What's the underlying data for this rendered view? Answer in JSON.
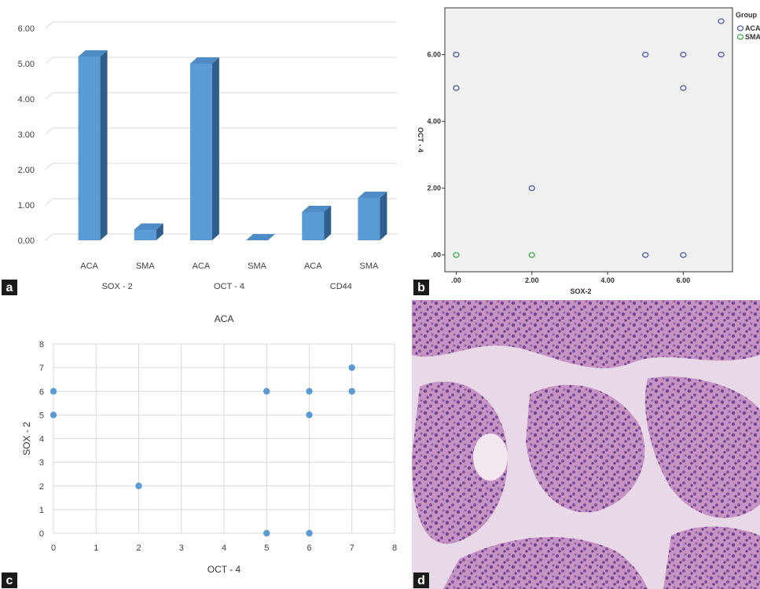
{
  "panel_labels": {
    "a": "a",
    "b": "b",
    "c": "c",
    "d": "d"
  },
  "colors": {
    "bar": "#5b9bd5",
    "bar_dark": "#2f5f8e",
    "acm": "#4a5aa8",
    "sma": "#3aa84a",
    "point": "#5b9bd5",
    "label_bg": "#1a1a1a"
  },
  "chart_data": [
    {
      "panel": "a",
      "type": "bar",
      "groups": [
        "SOX - 2",
        "OCT - 4",
        "CD44"
      ],
      "categories": [
        "ACA",
        "SMA",
        "ACA",
        "SMA",
        "ACA",
        "SMA"
      ],
      "values": [
        5.2,
        0.3,
        5.0,
        0.0,
        0.8,
        1.2
      ],
      "yticks": [
        "0.00",
        "1.00",
        "2.00",
        "3.00",
        "4.00",
        "5.00",
        "6.00"
      ],
      "ylim": [
        0,
        6
      ]
    },
    {
      "panel": "b",
      "type": "scatter",
      "xlabel": "SOX-2",
      "ylabel": "OCT - 4",
      "legend_title": "Group",
      "xticks": [
        ".00",
        "2.00",
        "4.00",
        "6.00"
      ],
      "yticks": [
        ".00",
        "2.00",
        "4.00",
        "6.00"
      ],
      "xlim": [
        -0.3,
        7.3
      ],
      "ylim": [
        -0.5,
        7.4
      ],
      "series": [
        {
          "name": "ACA",
          "points": [
            [
              0,
              6
            ],
            [
              0,
              5
            ],
            [
              2,
              2
            ],
            [
              5,
              6
            ],
            [
              5,
              0
            ],
            [
              6,
              6
            ],
            [
              6,
              5
            ],
            [
              6,
              0
            ],
            [
              7,
              7
            ],
            [
              7,
              6
            ]
          ]
        },
        {
          "name": "SMA",
          "points": [
            [
              0,
              0
            ],
            [
              2,
              0
            ]
          ]
        }
      ]
    },
    {
      "panel": "c",
      "type": "scatter",
      "title": "ACA",
      "xlabel": "OCT - 4",
      "ylabel": "SOX - 2",
      "xticks": [
        "0",
        "1",
        "2",
        "3",
        "4",
        "5",
        "6",
        "7",
        "8"
      ],
      "yticks": [
        "0",
        "1",
        "2",
        "3",
        "4",
        "5",
        "6",
        "7",
        "8"
      ],
      "xlim": [
        0,
        8
      ],
      "ylim": [
        0,
        8
      ],
      "points": [
        [
          0,
          6
        ],
        [
          0,
          5
        ],
        [
          2,
          2
        ],
        [
          5,
          6
        ],
        [
          5,
          0
        ],
        [
          6,
          6
        ],
        [
          6,
          5
        ],
        [
          6,
          0
        ],
        [
          7,
          7
        ],
        [
          7,
          6
        ]
      ]
    }
  ],
  "figure_d": {
    "description": "histology micrograph"
  }
}
